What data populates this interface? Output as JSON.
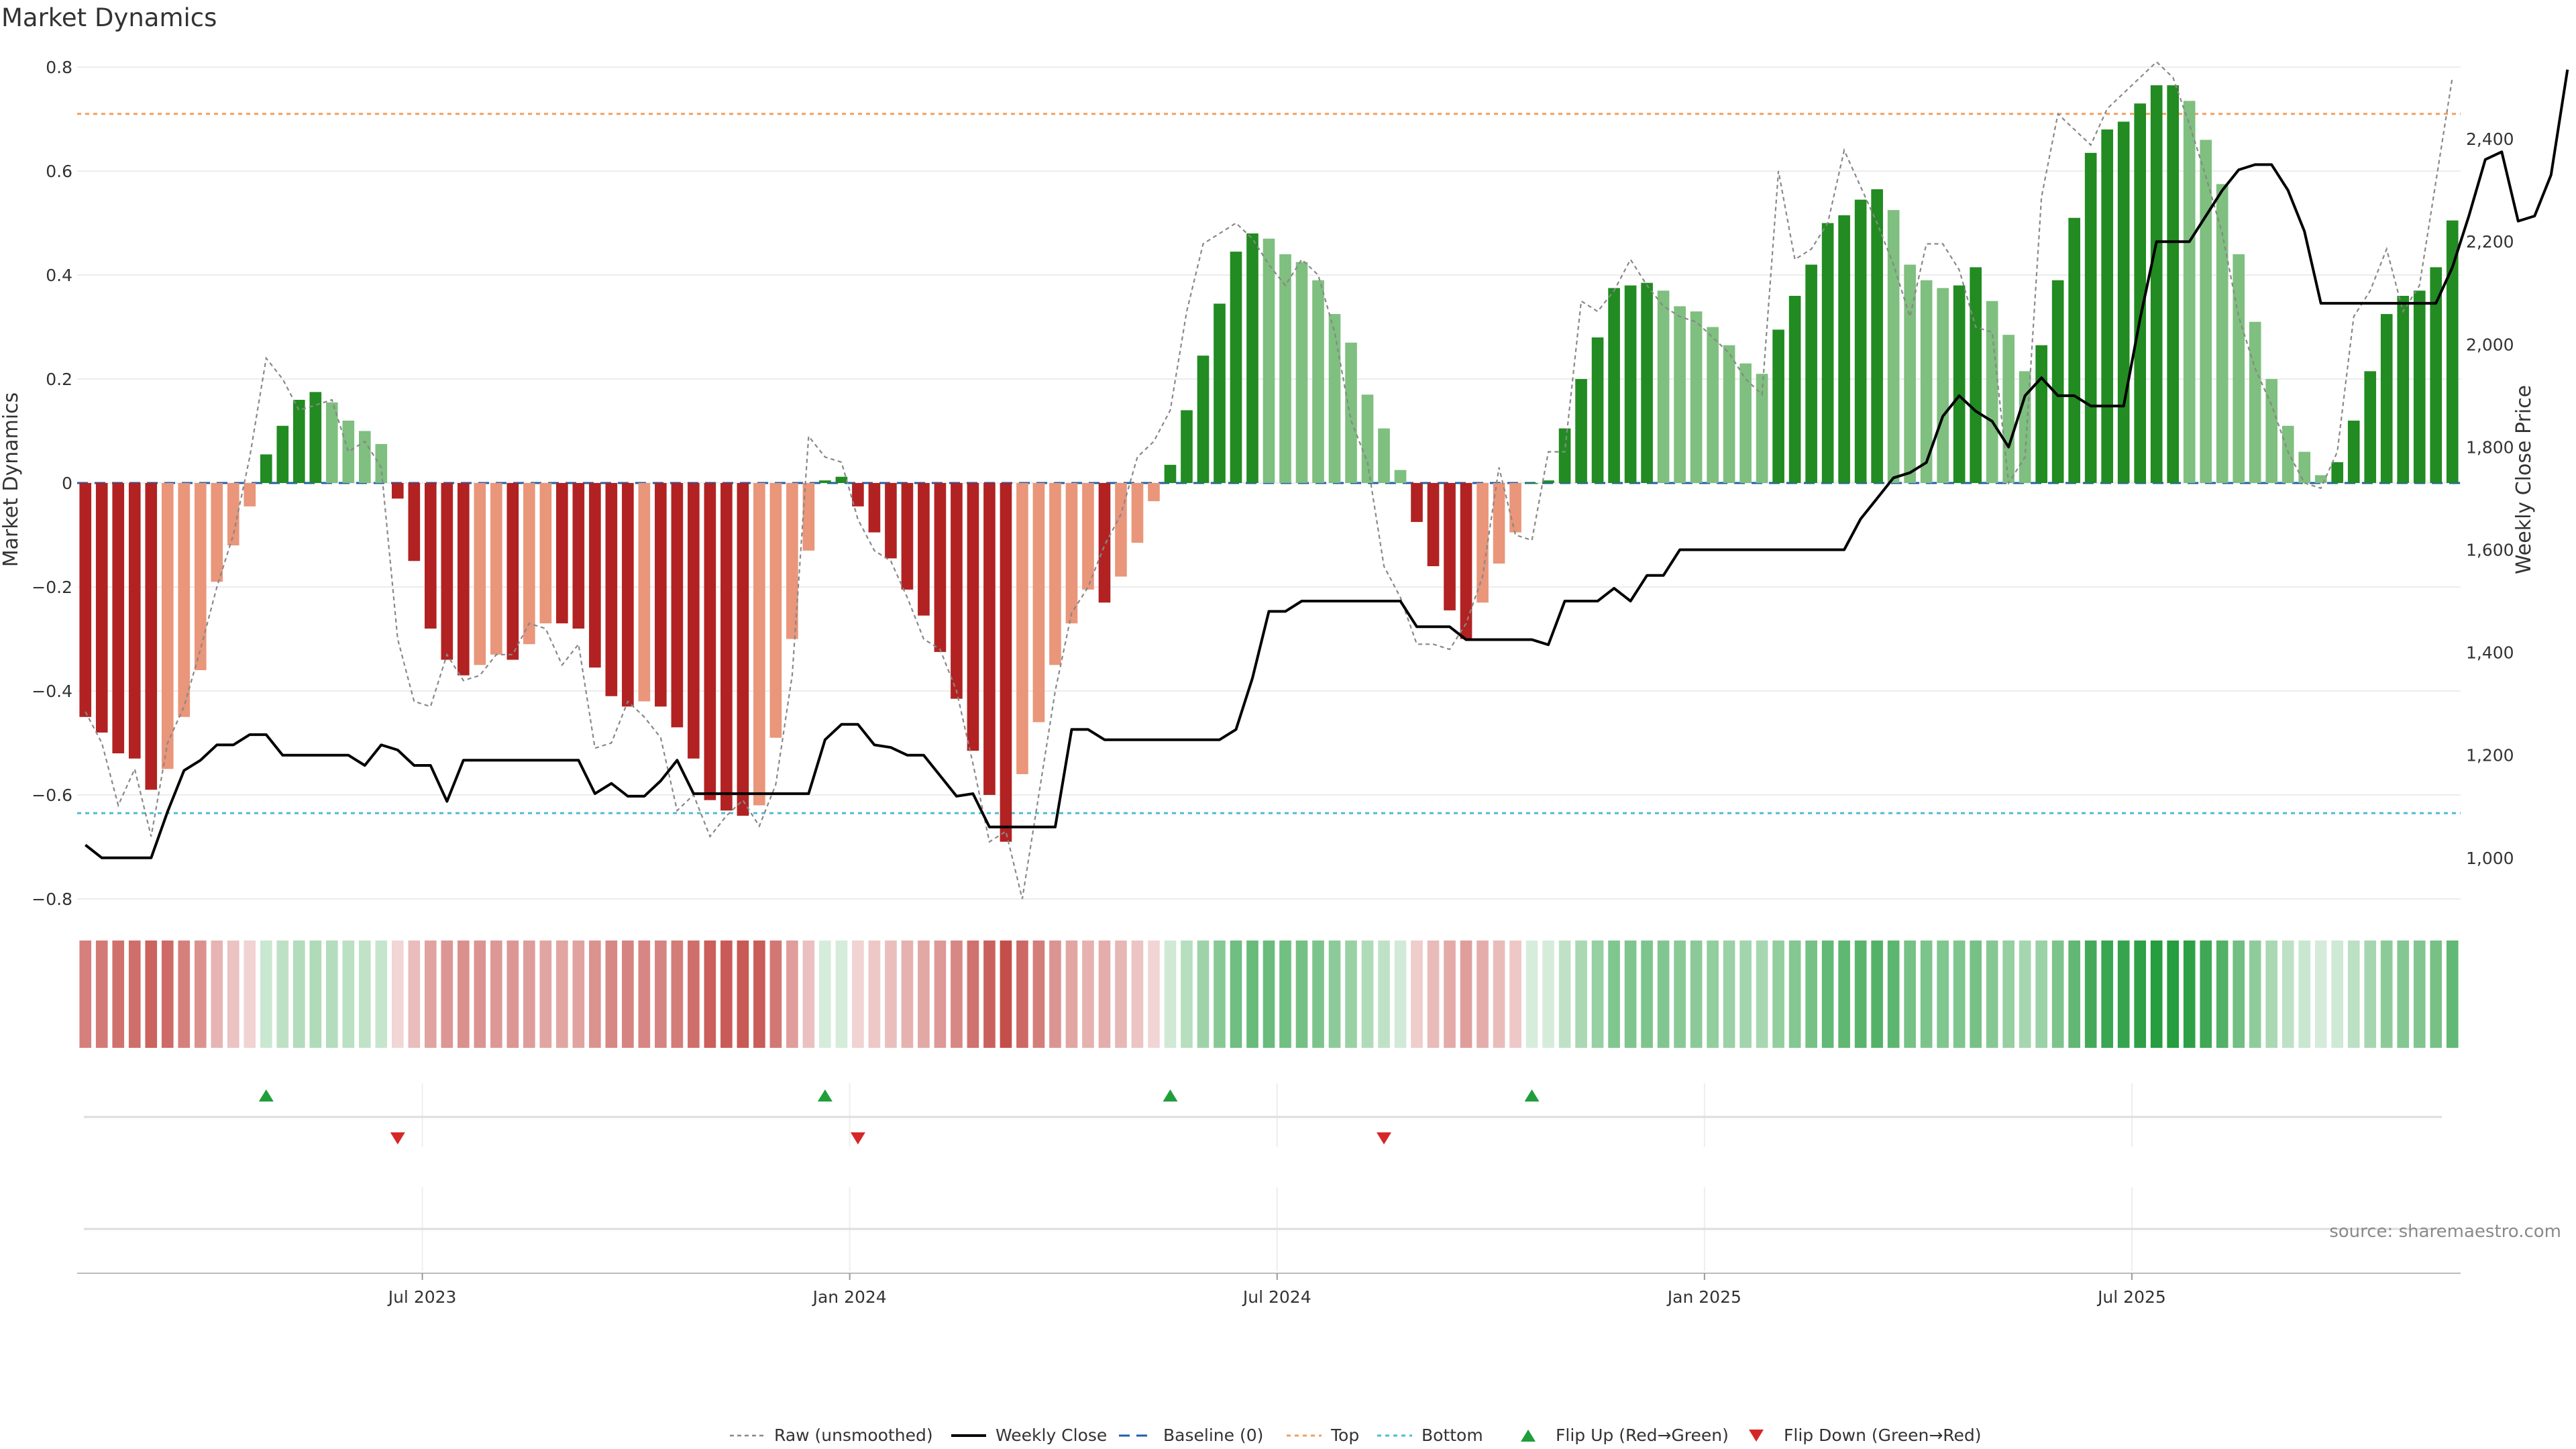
{
  "colors": {
    "strong_green": "#228b22",
    "weak_green": "#7fbf7f",
    "strong_red": "#b22222",
    "weak_red": "#e9967a",
    "close_line": "#000000",
    "raw_line": "#888888",
    "baseline": "#1f5fa8",
    "top": "#f0a060",
    "bottom": "#4dbbd5",
    "flip_up": "#1f9e3a",
    "flip_down": "#d62728"
  },
  "legend": [
    {
      "label": "Raw (unsmoothed)",
      "style": "raw"
    },
    {
      "label": "Weekly Close",
      "style": "close"
    },
    {
      "label": "Baseline (0)",
      "style": "baseline"
    },
    {
      "label": "Top",
      "style": "top"
    },
    {
      "label": "Bottom",
      "style": "bottom"
    },
    {
      "label": "Flip Up (Red→Green)",
      "style": "up"
    },
    {
      "label": "Flip Down (Green→Red)",
      "style": "down"
    }
  ],
  "chart_data": {
    "type": "bar",
    "title": "Market Dynamics",
    "ylabel": "Market Dynamics",
    "y2label": "Weekly Close Price",
    "source": "source: sharemaestro.com",
    "ylim": [
      -0.8,
      0.8
    ],
    "y2lim": [
      920,
      2540
    ],
    "yticks": [
      "−0.8",
      "−0.6",
      "−0.4",
      "−0.2",
      "0",
      "0.2",
      "0.4",
      "0.6",
      "0.8"
    ],
    "y2ticks": [
      "1,000",
      "1,200",
      "1,400",
      "1,600",
      "1,800",
      "2,000",
      "2,200",
      "2,400"
    ],
    "y2tick_values": [
      1000,
      1200,
      1400,
      1600,
      1800,
      2000,
      2200,
      2400
    ],
    "xticks": [
      "Jul 2023",
      "Jan 2024",
      "Jul 2024",
      "Jan 2025",
      "Jul 2025"
    ],
    "xtick_index": [
      20.5,
      46.5,
      72.5,
      98.5,
      124.5
    ],
    "top_line": 0.71,
    "bottom_line": -0.635,
    "start": "2023-02-13",
    "bar_labels": [
      "strong green",
      "weak green",
      "weak red",
      "strong red"
    ],
    "series": [
      {
        "name": "Market Dynamics",
        "values": [
          -0.45,
          -0.48,
          -0.52,
          -0.53,
          -0.59,
          -0.55,
          -0.45,
          -0.36,
          -0.19,
          -0.12,
          -0.045,
          0.055,
          0.11,
          0.16,
          0.175,
          0.155,
          0.12,
          0.1,
          0.075,
          -0.03,
          -0.15,
          -0.28,
          -0.34,
          -0.37,
          -0.35,
          -0.33,
          -0.34,
          -0.31,
          -0.27,
          -0.27,
          -0.28,
          -0.355,
          -0.41,
          -0.43,
          -0.42,
          -0.43,
          -0.47,
          -0.53,
          -0.61,
          -0.63,
          -0.64,
          -0.62,
          -0.49,
          -0.3,
          -0.13,
          0.005,
          0.012,
          -0.045,
          -0.095,
          -0.145,
          -0.205,
          -0.255,
          -0.325,
          -0.415,
          -0.515,
          -0.6,
          -0.69,
          -0.56,
          -0.46,
          -0.35,
          -0.27,
          -0.205,
          -0.23,
          -0.18,
          -0.115,
          -0.035,
          0.035,
          0.14,
          0.245,
          0.345,
          0.445,
          0.48,
          0.47,
          0.44,
          0.425,
          0.39,
          0.325,
          0.27,
          0.17,
          0.105,
          0.025,
          -0.075,
          -0.16,
          -0.245,
          -0.3,
          -0.23,
          -0.155,
          -0.095,
          0.0,
          0.005,
          0.105,
          0.2,
          0.28,
          0.375,
          0.38,
          0.385,
          0.37,
          0.34,
          0.33,
          0.3,
          0.265,
          0.23,
          0.21,
          0.295,
          0.36,
          0.42,
          0.5,
          0.515,
          0.545,
          0.565,
          0.525,
          0.42,
          0.39,
          0.375,
          0.38,
          0.415,
          0.35,
          0.285,
          0.215,
          0.265,
          0.39,
          0.51,
          0.635,
          0.68,
          0.695,
          0.73,
          0.765,
          0.765,
          0.735,
          0.66,
          0.575,
          0.44,
          0.31,
          0.2,
          0.11,
          0.06,
          0.015,
          0.04,
          0.12,
          0.215,
          0.325,
          0.36,
          0.37,
          0.415,
          0.505
        ]
      },
      {
        "name": "Weekly Close",
        "values": [
          1025,
          1000,
          1000,
          1000,
          1000,
          1090,
          1170,
          1190,
          1220,
          1220,
          1240,
          1240,
          1200,
          1200,
          1200,
          1200,
          1200,
          1180,
          1220,
          1210,
          1180,
          1180,
          1110,
          1190,
          1190,
          1190,
          1190,
          1190,
          1190,
          1190,
          1190,
          1125,
          1145,
          1120,
          1120,
          1150,
          1190,
          1125,
          1125,
          1125,
          1125,
          1125,
          1125,
          1125,
          1125,
          1230,
          1260,
          1260,
          1220,
          1215,
          1200,
          1200,
          1160,
          1120,
          1125,
          1060,
          1060,
          1060,
          1060,
          1060,
          1250,
          1250,
          1230,
          1230,
          1230,
          1230,
          1230,
          1230,
          1230,
          1230,
          1250,
          1350,
          1480,
          1480,
          1500,
          1500,
          1500,
          1500,
          1500,
          1500,
          1500,
          1450,
          1450,
          1450,
          1425,
          1425,
          1425,
          1425,
          1425,
          1415,
          1500,
          1500,
          1500,
          1525,
          1500,
          1550,
          1550,
          1600,
          1600,
          1600,
          1600,
          1600,
          1600,
          1600,
          1600,
          1600,
          1600,
          1600,
          1660,
          1700,
          1740,
          1750,
          1770,
          1860,
          1900,
          1870,
          1850,
          1800,
          1900,
          1935,
          1900,
          1900,
          1880,
          1880,
          1880,
          2050,
          2200,
          2200,
          2200,
          2250,
          2300,
          2340,
          2350,
          2350,
          2300,
          2220,
          2080,
          2080,
          2080,
          2080,
          2080,
          2080,
          2080,
          2080,
          2150,
          2250,
          2360,
          2375,
          2240,
          2250,
          2330,
          2535
        ]
      },
      {
        "name": "Raw (unsmoothed)",
        "values": [
          -0.44,
          -0.5,
          -0.62,
          -0.55,
          -0.68,
          -0.5,
          -0.43,
          -0.32,
          -0.2,
          -0.1,
          0.05,
          0.24,
          0.2,
          0.14,
          0.15,
          0.16,
          0.06,
          0.08,
          0.03,
          -0.3,
          -0.42,
          -0.43,
          -0.33,
          -0.38,
          -0.37,
          -0.33,
          -0.33,
          -0.27,
          -0.28,
          -0.35,
          -0.31,
          -0.51,
          -0.5,
          -0.42,
          -0.45,
          -0.49,
          -0.63,
          -0.6,
          -0.68,
          -0.64,
          -0.61,
          -0.66,
          -0.58,
          -0.37,
          0.09,
          0.05,
          0.04,
          -0.07,
          -0.13,
          -0.15,
          -0.22,
          -0.3,
          -0.32,
          -0.4,
          -0.54,
          -0.69,
          -0.67,
          -0.8,
          -0.6,
          -0.4,
          -0.25,
          -0.2,
          -0.12,
          -0.06,
          0.05,
          0.08,
          0.14,
          0.33,
          0.46,
          0.48,
          0.5,
          0.47,
          0.42,
          0.38,
          0.43,
          0.4,
          0.29,
          0.12,
          0.04,
          -0.16,
          -0.22,
          -0.31,
          -0.31,
          -0.32,
          -0.27,
          -0.18,
          0.03,
          -0.1,
          -0.11,
          0.06,
          0.06,
          0.35,
          0.33,
          0.37,
          0.43,
          0.38,
          0.34,
          0.32,
          0.31,
          0.28,
          0.25,
          0.2,
          0.17,
          0.6,
          0.43,
          0.45,
          0.5,
          0.64,
          0.57,
          0.5,
          0.42,
          0.32,
          0.46,
          0.46,
          0.41,
          0.3,
          0.29,
          0.0,
          0.05,
          0.55,
          0.71,
          0.68,
          0.65,
          0.72,
          0.75,
          0.78,
          0.81,
          0.78,
          0.69,
          0.59,
          0.48,
          0.32,
          0.22,
          0.15,
          0.06,
          0.0,
          -0.01,
          0.06,
          0.32,
          0.37,
          0.45,
          0.33,
          0.38,
          0.58,
          0.78
        ]
      },
      {
        "name": "Flip Up (Red→Green)",
        "index": [
          11,
          45,
          66,
          88
        ]
      },
      {
        "name": "Flip Down (Green→Red)",
        "index": [
          19,
          47,
          79
        ]
      }
    ]
  }
}
